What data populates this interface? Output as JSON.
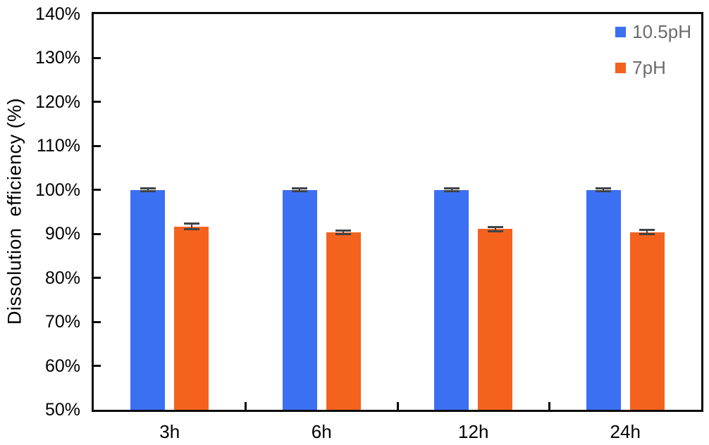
{
  "chart_data": {
    "type": "bar",
    "title": "",
    "ylabel": "Dissolution  efficiency (%)",
    "xlabel": "",
    "categories": [
      "3h",
      "6h",
      "12h",
      "24h"
    ],
    "series": [
      {
        "name": "10.5pH",
        "color": "#3b70f2",
        "values": [
          100,
          100,
          100,
          100
        ],
        "errors": [
          0.3,
          0.3,
          0.3,
          0.3
        ]
      },
      {
        "name": "7pH",
        "color": "#f4621e",
        "values": [
          91.7,
          90.4,
          91.1,
          90.4
        ],
        "errors": [
          0.7,
          0.4,
          0.5,
          0.5
        ]
      }
    ],
    "ylim": [
      50,
      140
    ],
    "ytick_step": 10,
    "ytick_labels": [
      "140%",
      "130%",
      "120%",
      "110%",
      "100%",
      "90%",
      "80%",
      "70%",
      "60%",
      "50%"
    ],
    "ytick_format": "percent",
    "grid": false,
    "legend_position": "top-right",
    "legend_text_color": "#6b6b6b",
    "error_bar_color": "#3f4447",
    "axis_color": "#0a0a0a"
  }
}
